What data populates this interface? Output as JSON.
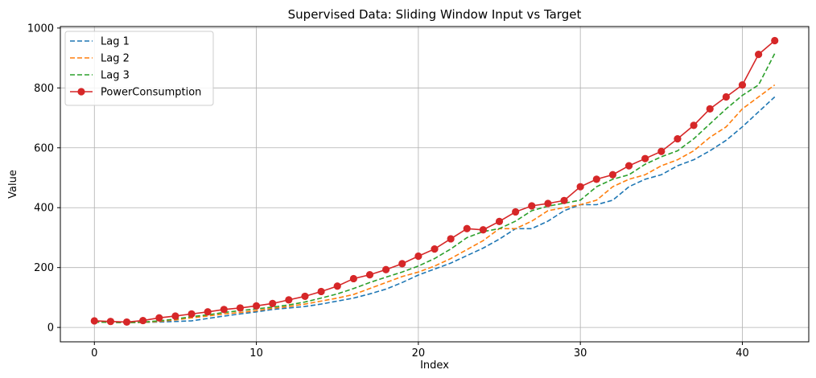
{
  "chart_data": {
    "type": "line",
    "title": "Supervised Data: Sliding Window Input vs Target",
    "xlabel": "Index",
    "ylabel": "Value",
    "xlim": [
      -2.1,
      44.1
    ],
    "ylim": [
      -48,
      1005
    ],
    "xticks": [
      0,
      10,
      20,
      30,
      40
    ],
    "yticks": [
      0,
      200,
      400,
      600,
      800,
      1000
    ],
    "grid": true,
    "legend_position": "upper-left",
    "x": [
      0,
      1,
      2,
      3,
      4,
      5,
      6,
      7,
      8,
      9,
      10,
      11,
      12,
      13,
      14,
      15,
      16,
      17,
      18,
      19,
      20,
      21,
      22,
      23,
      24,
      25,
      26,
      27,
      28,
      29,
      30,
      31,
      32,
      33,
      34,
      35,
      36,
      37,
      38,
      39,
      40,
      41,
      42
    ],
    "series": [
      {
        "name": "Lag 1",
        "color": "#1f77b4",
        "style": "dashed",
        "marker": false,
        "values": [
          18,
          17,
          16,
          17,
          18,
          20,
          22,
          30,
          38,
          45,
          52,
          60,
          65,
          70,
          78,
          88,
          98,
          112,
          128,
          150,
          175,
          195,
          215,
          240,
          265,
          295,
          330,
          330,
          355,
          390,
          410,
          410,
          425,
          470,
          495,
          510,
          540,
          560,
          590,
          625,
          670,
          720,
          770
        ]
      },
      {
        "name": "Lag 2",
        "color": "#ff7f0e",
        "style": "dashed",
        "marker": false,
        "values": [
          18,
          17,
          16,
          17,
          20,
          25,
          32,
          38,
          45,
          50,
          56,
          64,
          70,
          78,
          88,
          98,
          110,
          130,
          150,
          170,
          185,
          205,
          230,
          260,
          290,
          330,
          330,
          355,
          390,
          400,
          410,
          425,
          470,
          495,
          510,
          540,
          560,
          590,
          635,
          670,
          730,
          770,
          810
        ]
      },
      {
        "name": "Lag 3",
        "color": "#2ca02c",
        "style": "dashed",
        "marker": false,
        "values": [
          18,
          17,
          16,
          18,
          22,
          28,
          36,
          42,
          50,
          56,
          62,
          68,
          75,
          85,
          98,
          112,
          130,
          150,
          168,
          185,
          205,
          230,
          262,
          300,
          320,
          330,
          355,
          390,
          405,
          415,
          425,
          470,
          495,
          510,
          545,
          570,
          590,
          630,
          680,
          730,
          775,
          810,
          915
        ]
      },
      {
        "name": "PowerConsumption",
        "color": "#d62728",
        "style": "solid",
        "marker": true,
        "values": [
          22,
          20,
          18,
          23,
          32,
          38,
          45,
          52,
          60,
          65,
          72,
          80,
          92,
          104,
          120,
          138,
          163,
          176,
          193,
          213,
          238,
          262,
          296,
          330,
          326,
          354,
          386,
          406,
          414,
          424,
          470,
          495,
          510,
          540,
          564,
          588,
          630,
          675,
          730,
          770,
          810,
          912,
          958
        ]
      }
    ]
  }
}
